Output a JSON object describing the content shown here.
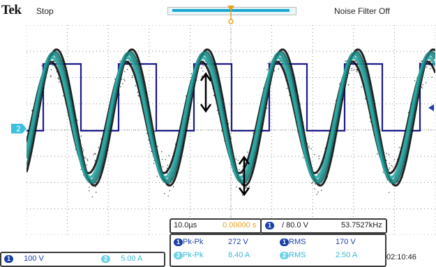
{
  "header": {
    "brand": "Tek",
    "acq_state": "Stop",
    "noise_filter": "Noise Filter Off"
  },
  "markers": {
    "ch2_ref": "2",
    "ch1_ref": "1"
  },
  "readout": {
    "horizontal_scale": "10.0µs",
    "trigger_position": "0.00000 s",
    "trigger_channel": "1",
    "trigger_level": "/ 80.0 V",
    "frequency": "53.7527kHz",
    "time": "02:10:46"
  },
  "channels": [
    {
      "id": "1",
      "scale": "100 V",
      "color": "#1b3fa8"
    },
    {
      "id": "2",
      "scale": "5.00 A",
      "color": "#6fd3e8"
    }
  ],
  "measurements": [
    {
      "channel": "1",
      "label": "Pk-Pk",
      "value": "272 V",
      "channel2": "1",
      "label2": "RMS",
      "value2": "170 V"
    },
    {
      "channel": "2",
      "label": "Pk-Pk",
      "value": "8.40 A",
      "channel2": "2",
      "label2": "RMS",
      "value2": "2.50 A"
    }
  ],
  "colors": {
    "ch1_trace": "#1a1a8a",
    "ch2_trace": "#1e8a86",
    "grid": "#8c8c8c",
    "trigger_marker": "#e6a21a"
  }
}
